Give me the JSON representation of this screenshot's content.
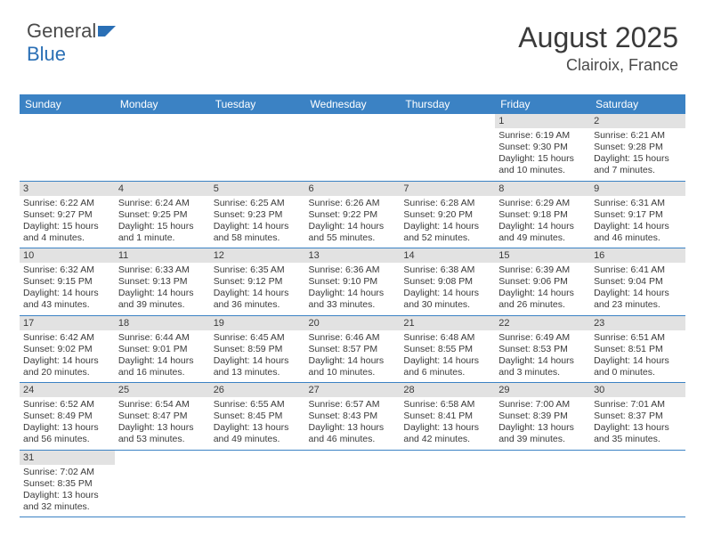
{
  "logo": {
    "text1": "General",
    "text2": "Blue"
  },
  "header": {
    "title": "August 2025",
    "location": "Clairoix, France"
  },
  "colors": {
    "header_bg": "#3b82c4",
    "header_fg": "#ffffff",
    "daynum_bg": "#e2e2e2",
    "text": "#3a3a3a",
    "rule": "#3b82c4"
  },
  "fonts": {
    "title_size": 32,
    "location_size": 18,
    "dayhead_size": 12,
    "body_size": 10.5
  },
  "days": [
    "Sunday",
    "Monday",
    "Tuesday",
    "Wednesday",
    "Thursday",
    "Friday",
    "Saturday"
  ],
  "grid": [
    [
      null,
      null,
      null,
      null,
      null,
      {
        "n": "1",
        "sr": "Sunrise: 6:19 AM",
        "ss": "Sunset: 9:30 PM",
        "d1": "Daylight: 15 hours",
        "d2": "and 10 minutes."
      },
      {
        "n": "2",
        "sr": "Sunrise: 6:21 AM",
        "ss": "Sunset: 9:28 PM",
        "d1": "Daylight: 15 hours",
        "d2": "and 7 minutes."
      }
    ],
    [
      {
        "n": "3",
        "sr": "Sunrise: 6:22 AM",
        "ss": "Sunset: 9:27 PM",
        "d1": "Daylight: 15 hours",
        "d2": "and 4 minutes."
      },
      {
        "n": "4",
        "sr": "Sunrise: 6:24 AM",
        "ss": "Sunset: 9:25 PM",
        "d1": "Daylight: 15 hours",
        "d2": "and 1 minute."
      },
      {
        "n": "5",
        "sr": "Sunrise: 6:25 AM",
        "ss": "Sunset: 9:23 PM",
        "d1": "Daylight: 14 hours",
        "d2": "and 58 minutes."
      },
      {
        "n": "6",
        "sr": "Sunrise: 6:26 AM",
        "ss": "Sunset: 9:22 PM",
        "d1": "Daylight: 14 hours",
        "d2": "and 55 minutes."
      },
      {
        "n": "7",
        "sr": "Sunrise: 6:28 AM",
        "ss": "Sunset: 9:20 PM",
        "d1": "Daylight: 14 hours",
        "d2": "and 52 minutes."
      },
      {
        "n": "8",
        "sr": "Sunrise: 6:29 AM",
        "ss": "Sunset: 9:18 PM",
        "d1": "Daylight: 14 hours",
        "d2": "and 49 minutes."
      },
      {
        "n": "9",
        "sr": "Sunrise: 6:31 AM",
        "ss": "Sunset: 9:17 PM",
        "d1": "Daylight: 14 hours",
        "d2": "and 46 minutes."
      }
    ],
    [
      {
        "n": "10",
        "sr": "Sunrise: 6:32 AM",
        "ss": "Sunset: 9:15 PM",
        "d1": "Daylight: 14 hours",
        "d2": "and 43 minutes."
      },
      {
        "n": "11",
        "sr": "Sunrise: 6:33 AM",
        "ss": "Sunset: 9:13 PM",
        "d1": "Daylight: 14 hours",
        "d2": "and 39 minutes."
      },
      {
        "n": "12",
        "sr": "Sunrise: 6:35 AM",
        "ss": "Sunset: 9:12 PM",
        "d1": "Daylight: 14 hours",
        "d2": "and 36 minutes."
      },
      {
        "n": "13",
        "sr": "Sunrise: 6:36 AM",
        "ss": "Sunset: 9:10 PM",
        "d1": "Daylight: 14 hours",
        "d2": "and 33 minutes."
      },
      {
        "n": "14",
        "sr": "Sunrise: 6:38 AM",
        "ss": "Sunset: 9:08 PM",
        "d1": "Daylight: 14 hours",
        "d2": "and 30 minutes."
      },
      {
        "n": "15",
        "sr": "Sunrise: 6:39 AM",
        "ss": "Sunset: 9:06 PM",
        "d1": "Daylight: 14 hours",
        "d2": "and 26 minutes."
      },
      {
        "n": "16",
        "sr": "Sunrise: 6:41 AM",
        "ss": "Sunset: 9:04 PM",
        "d1": "Daylight: 14 hours",
        "d2": "and 23 minutes."
      }
    ],
    [
      {
        "n": "17",
        "sr": "Sunrise: 6:42 AM",
        "ss": "Sunset: 9:02 PM",
        "d1": "Daylight: 14 hours",
        "d2": "and 20 minutes."
      },
      {
        "n": "18",
        "sr": "Sunrise: 6:44 AM",
        "ss": "Sunset: 9:01 PM",
        "d1": "Daylight: 14 hours",
        "d2": "and 16 minutes."
      },
      {
        "n": "19",
        "sr": "Sunrise: 6:45 AM",
        "ss": "Sunset: 8:59 PM",
        "d1": "Daylight: 14 hours",
        "d2": "and 13 minutes."
      },
      {
        "n": "20",
        "sr": "Sunrise: 6:46 AM",
        "ss": "Sunset: 8:57 PM",
        "d1": "Daylight: 14 hours",
        "d2": "and 10 minutes."
      },
      {
        "n": "21",
        "sr": "Sunrise: 6:48 AM",
        "ss": "Sunset: 8:55 PM",
        "d1": "Daylight: 14 hours",
        "d2": "and 6 minutes."
      },
      {
        "n": "22",
        "sr": "Sunrise: 6:49 AM",
        "ss": "Sunset: 8:53 PM",
        "d1": "Daylight: 14 hours",
        "d2": "and 3 minutes."
      },
      {
        "n": "23",
        "sr": "Sunrise: 6:51 AM",
        "ss": "Sunset: 8:51 PM",
        "d1": "Daylight: 14 hours",
        "d2": "and 0 minutes."
      }
    ],
    [
      {
        "n": "24",
        "sr": "Sunrise: 6:52 AM",
        "ss": "Sunset: 8:49 PM",
        "d1": "Daylight: 13 hours",
        "d2": "and 56 minutes."
      },
      {
        "n": "25",
        "sr": "Sunrise: 6:54 AM",
        "ss": "Sunset: 8:47 PM",
        "d1": "Daylight: 13 hours",
        "d2": "and 53 minutes."
      },
      {
        "n": "26",
        "sr": "Sunrise: 6:55 AM",
        "ss": "Sunset: 8:45 PM",
        "d1": "Daylight: 13 hours",
        "d2": "and 49 minutes."
      },
      {
        "n": "27",
        "sr": "Sunrise: 6:57 AM",
        "ss": "Sunset: 8:43 PM",
        "d1": "Daylight: 13 hours",
        "d2": "and 46 minutes."
      },
      {
        "n": "28",
        "sr": "Sunrise: 6:58 AM",
        "ss": "Sunset: 8:41 PM",
        "d1": "Daylight: 13 hours",
        "d2": "and 42 minutes."
      },
      {
        "n": "29",
        "sr": "Sunrise: 7:00 AM",
        "ss": "Sunset: 8:39 PM",
        "d1": "Daylight: 13 hours",
        "d2": "and 39 minutes."
      },
      {
        "n": "30",
        "sr": "Sunrise: 7:01 AM",
        "ss": "Sunset: 8:37 PM",
        "d1": "Daylight: 13 hours",
        "d2": "and 35 minutes."
      }
    ],
    [
      {
        "n": "31",
        "sr": "Sunrise: 7:02 AM",
        "ss": "Sunset: 8:35 PM",
        "d1": "Daylight: 13 hours",
        "d2": "and 32 minutes."
      },
      null,
      null,
      null,
      null,
      null,
      null
    ]
  ]
}
